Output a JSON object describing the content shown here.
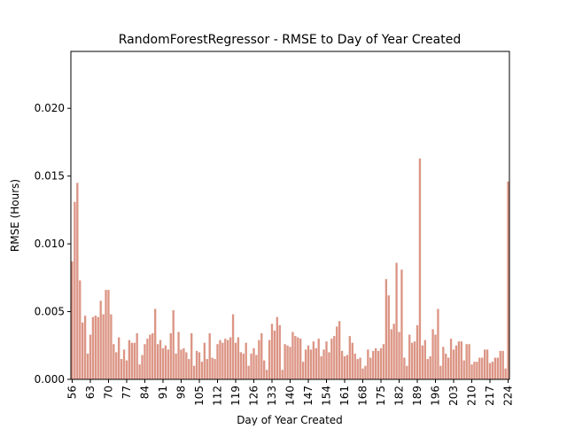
{
  "chart_data": {
    "type": "bar",
    "title": "RandomForestRegressor - RMSE to Day of Year Created",
    "xlabel": "Day of Year Created",
    "ylabel": "RMSE (Hours)",
    "color": "#dc9585",
    "x": [
      56,
      57,
      58,
      59,
      60,
      61,
      62,
      63,
      64,
      65,
      66,
      67,
      68,
      69,
      70,
      71,
      72,
      73,
      74,
      75,
      76,
      77,
      78,
      79,
      80,
      81,
      82,
      83,
      84,
      85,
      86,
      87,
      88,
      89,
      90,
      91,
      92,
      93,
      94,
      95,
      96,
      97,
      98,
      99,
      100,
      101,
      102,
      103,
      104,
      105,
      106,
      107,
      108,
      109,
      110,
      111,
      112,
      113,
      114,
      115,
      116,
      117,
      118,
      119,
      120,
      121,
      122,
      123,
      124,
      125,
      126,
      127,
      128,
      129,
      130,
      131,
      132,
      133,
      134,
      135,
      136,
      137,
      138,
      139,
      140,
      141,
      142,
      143,
      144,
      145,
      146,
      147,
      148,
      149,
      150,
      151,
      152,
      153,
      154,
      155,
      156,
      157,
      158,
      159,
      160,
      161,
      162,
      163,
      164,
      165,
      166,
      167,
      168,
      169,
      170,
      171,
      172,
      173,
      174,
      175,
      176,
      177,
      178,
      179,
      180,
      181,
      182,
      183,
      184,
      185,
      186,
      187,
      188,
      189,
      190,
      191,
      192,
      193,
      194,
      195,
      196,
      197,
      198,
      199,
      200,
      201,
      202,
      203,
      204,
      205,
      206,
      207,
      208,
      209,
      210,
      211,
      212,
      213,
      214,
      215,
      216,
      217,
      218,
      219,
      220,
      221,
      222,
      223,
      224
    ],
    "values": [
      0.0087,
      0.0131,
      0.0145,
      0.0073,
      0.0042,
      0.0047,
      0.0019,
      0.0033,
      0.0046,
      0.0047,
      0.0046,
      0.0058,
      0.0048,
      0.0066,
      0.0066,
      0.0048,
      0.0026,
      0.002,
      0.0031,
      0.0015,
      0.0022,
      0.0014,
      0.0029,
      0.0027,
      0.0027,
      0.0034,
      0.0011,
      0.0018,
      0.0026,
      0.003,
      0.0033,
      0.0034,
      0.0052,
      0.0026,
      0.0029,
      0.0023,
      0.0025,
      0.0022,
      0.0034,
      0.0051,
      0.0019,
      0.0035,
      0.0022,
      0.0023,
      0.002,
      0.0015,
      0.0034,
      0.001,
      0.0021,
      0.002,
      0.0013,
      0.0027,
      0.0015,
      0.0034,
      0.0016,
      0.0015,
      0.0026,
      0.0029,
      0.0027,
      0.003,
      0.0029,
      0.0031,
      0.0048,
      0.0027,
      0.0031,
      0.002,
      0.0019,
      0.0027,
      0.001,
      0.0019,
      0.0023,
      0.0018,
      0.0029,
      0.0034,
      0.0014,
      0.0007,
      0.0029,
      0.0041,
      0.0036,
      0.0046,
      0.004,
      0.0007,
      0.0026,
      0.0025,
      0.0024,
      0.0035,
      0.0032,
      0.0031,
      0.003,
      0.0013,
      0.0022,
      0.0025,
      0.0022,
      0.0028,
      0.0023,
      0.003,
      0.0017,
      0.0022,
      0.0028,
      0.002,
      0.003,
      0.0032,
      0.0039,
      0.0043,
      0.0021,
      0.0017,
      0.0018,
      0.0032,
      0.0027,
      0.0019,
      0.0015,
      0.0016,
      0.0008,
      0.001,
      0.0022,
      0.0016,
      0.0021,
      0.0023,
      0.0021,
      0.0023,
      0.0026,
      0.0074,
      0.0062,
      0.0037,
      0.0041,
      0.0086,
      0.0035,
      0.0081,
      0.0016,
      0.001,
      0.0033,
      0.0027,
      0.0028,
      0.004,
      0.0163,
      0.0025,
      0.0029,
      0.0015,
      0.0017,
      0.0037,
      0.0033,
      0.0052,
      0.001,
      0.0024,
      0.0019,
      0.0016,
      0.003,
      0.0022,
      0.0025,
      0.0028,
      0.0028,
      0.0014,
      0.0026,
      0.0026,
      0.0011,
      0.0013,
      0.0013,
      0.0016,
      0.0016,
      0.0022,
      0.0022,
      0.0012,
      0.0013,
      0.0016,
      0.0016,
      0.0021,
      0.0021,
      0.0008,
      0.0146
    ],
    "xlim": [
      55.5,
      224.5
    ],
    "xticks": [
      56,
      63,
      70,
      77,
      84,
      91,
      98,
      105,
      112,
      119,
      126,
      133,
      140,
      147,
      154,
      161,
      168,
      175,
      182,
      189,
      196,
      203,
      210,
      217,
      224
    ],
    "ylim": [
      0,
      0.0242
    ],
    "yticks": [
      {
        "value": 0,
        "label": "0.000"
      },
      {
        "value": 0.005,
        "label": "0.005"
      },
      {
        "value": 0.01,
        "label": "0.010"
      },
      {
        "value": 0.015,
        "label": "0.015"
      },
      {
        "value": 0.02,
        "label": "0.020"
      }
    ]
  }
}
